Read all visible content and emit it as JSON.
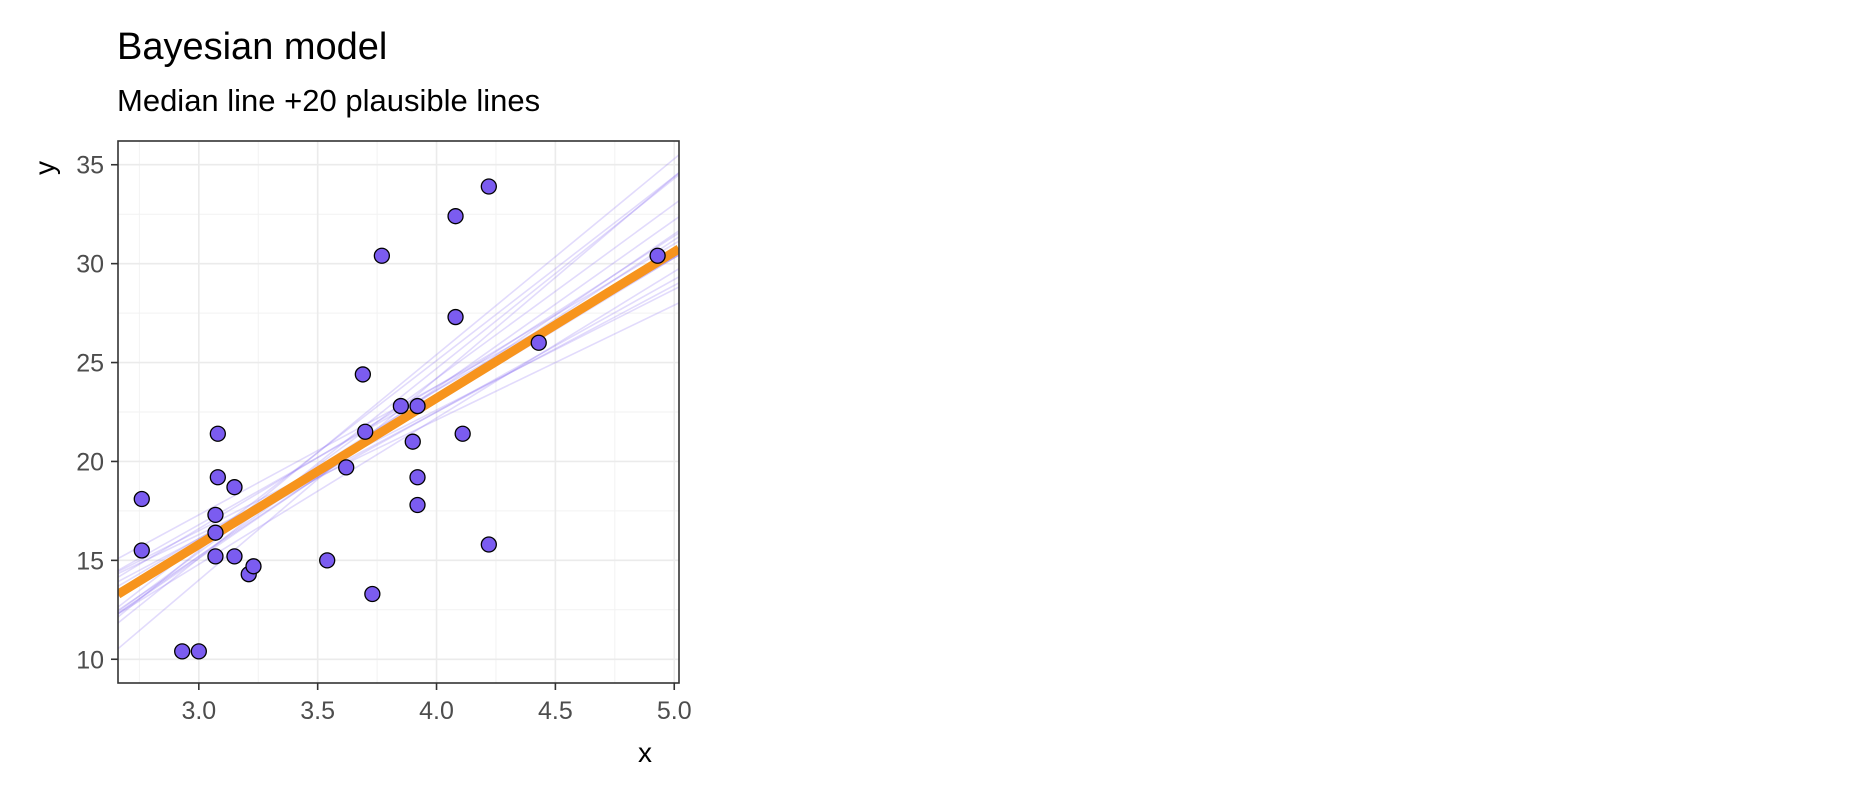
{
  "chart_data": {
    "type": "scatter",
    "title": "Bayesian model",
    "subtitle": "Median line +20 plausible lines",
    "xlabel": "x",
    "ylabel": "y",
    "xlim": [
      2.66,
      5.02
    ],
    "ylim": [
      8.8,
      36.2
    ],
    "xticks": [
      3.0,
      3.5,
      4.0,
      4.5,
      5.0
    ],
    "xtick_labels": [
      "3.0",
      "3.5",
      "4.0",
      "4.5",
      "5.0"
    ],
    "yticks": [
      10,
      15,
      20,
      25,
      30,
      35
    ],
    "ytick_labels": [
      "10",
      "15",
      "20",
      "25",
      "30",
      "35"
    ],
    "grid": true,
    "legend": "none",
    "points": {
      "name": "",
      "color": "#7B5CF0",
      "x": [
        2.76,
        2.76,
        2.93,
        3.0,
        3.07,
        3.07,
        3.07,
        3.08,
        3.08,
        3.15,
        3.15,
        3.21,
        3.23,
        3.54,
        3.62,
        3.69,
        3.7,
        3.73,
        3.77,
        3.85,
        3.9,
        3.92,
        3.92,
        3.92,
        4.08,
        4.08,
        4.11,
        4.22,
        4.22,
        4.43,
        4.93
      ],
      "y": [
        18.1,
        15.5,
        10.4,
        10.4,
        17.3,
        16.4,
        15.2,
        21.4,
        19.2,
        18.7,
        15.2,
        14.3,
        14.7,
        15.0,
        19.7,
        24.4,
        21.5,
        13.3,
        30.4,
        22.8,
        21.0,
        22.8,
        19.2,
        17.8,
        32.4,
        27.3,
        21.4,
        33.9,
        15.8,
        26.0,
        30.4
      ]
    },
    "median_line": {
      "color": "#F7941D",
      "intercept": -6.4,
      "slope": 7.4
    },
    "plausible_lines": {
      "color": "#7B5CF0",
      "lines": [
        {
          "intercept": -6.4,
          "slope": 7.4
        },
        {
          "intercept": -12.1,
          "slope": 9.3
        },
        {
          "intercept": -16.6,
          "slope": 10.2
        },
        {
          "intercept": -4.3,
          "slope": 6.7
        },
        {
          "intercept": -1.8,
          "slope": 6.1
        },
        {
          "intercept": -9.5,
          "slope": 8.2
        },
        {
          "intercept": -3.1,
          "slope": 6.4
        },
        {
          "intercept": -13.7,
          "slope": 9.6
        },
        {
          "intercept": -7.6,
          "slope": 7.8
        },
        {
          "intercept": -2.2,
          "slope": 6.5
        },
        {
          "intercept": -11.0,
          "slope": 8.8
        },
        {
          "intercept": -5.0,
          "slope": 7.2
        },
        {
          "intercept": -7.4,
          "slope": 7.4
        },
        {
          "intercept": -8.8,
          "slope": 8.0
        },
        {
          "intercept": -10.3,
          "slope": 8.5
        },
        {
          "intercept": -1.1,
          "slope": 5.8
        },
        {
          "intercept": -14.2,
          "slope": 9.9
        },
        {
          "intercept": -5.2,
          "slope": 7.1
        },
        {
          "intercept": -3.6,
          "slope": 6.8
        },
        {
          "intercept": -6.2,
          "slope": 7.3
        }
      ]
    }
  }
}
